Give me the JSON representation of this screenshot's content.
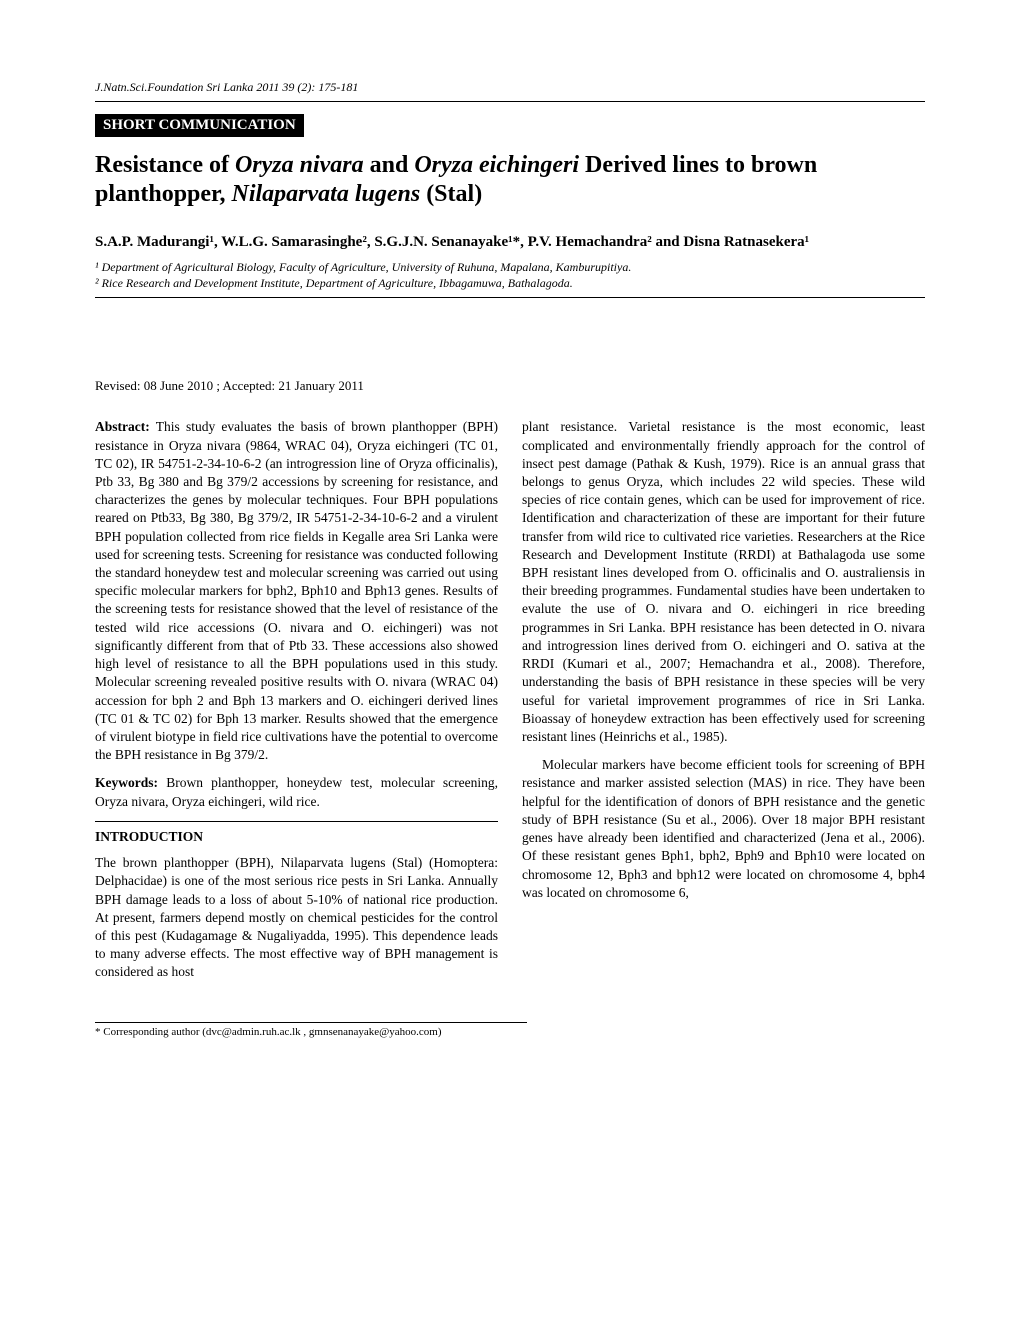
{
  "journal_header": "J.Natn.Sci.Foundation Sri Lanka 2011 39 (2): 175-181",
  "section_label": "SHORT COMMUNICATION",
  "title_pre": "Resistance of ",
  "title_sp1": "Oryza nivara",
  "title_mid1": " and ",
  "title_sp2": "Oryza eichingeri",
  "title_mid2": " Derived lines to brown planthopper, ",
  "title_sp3": "Nilaparvata lugens",
  "title_post": " (Stal)",
  "authors": "S.A.P. Madurangi¹, W.L.G. Samarasinghe², S.G.J.N. Senanayake¹*, P.V. Hemachandra² and Disna Ratnasekera¹",
  "aff1": "¹ Department of Agricultural Biology, Faculty of Agriculture, University of Ruhuna, Mapalana, Kamburupitiya.",
  "aff2": "² Rice Research and Development Institute, Department of Agriculture, Ibbagamuwa, Bathalagoda.",
  "dates": "Revised: 08 June 2010 ; Accepted: 21 January 2011",
  "abstract_label": "Abstract:",
  "abstract_text": " This study evaluates the basis of brown planthopper (BPH) resistance in Oryza nivara (9864, WRAC 04), Oryza eichingeri (TC 01, TC 02), IR 54751-2-34-10-6-2 (an introgression line of Oryza officinalis), Ptb 33, Bg 380 and Bg 379/2 accessions by screening for resistance, and characterizes the genes by molecular techniques. Four BPH populations reared on Ptb33, Bg 380, Bg 379/2, IR 54751-2-34-10-6-2 and a virulent BPH population collected from rice fields in Kegalle area Sri Lanka were used for screening tests. Screening for resistance was conducted following the standard honeydew test and molecular screening was carried out using specific molecular markers for bph2, Bph10 and Bph13 genes. Results of the screening tests for resistance showed that the level of resistance of the tested wild rice accessions (O. nivara and O. eichingeri) was not significantly different from that of Ptb 33. These accessions also showed high level of resistance to all the BPH populations used in this study. Molecular screening revealed positive results with O. nivara (WRAC 04) accession for bph 2 and Bph 13 markers and O. eichingeri derived lines (TC 01 & TC 02) for Bph 13 marker. Results showed that the emergence of virulent biotype in field rice cultivations have the potential to overcome the BPH resistance in Bg 379/2.",
  "keywords_label": "Keywords:",
  "keywords_text": " Brown planthopper, honeydew test, molecular screening, Oryza nivara, Oryza eichingeri, wild rice.",
  "intro_heading": "INTRODUCTION",
  "intro_p1": "The brown planthopper (BPH), Nilaparvata lugens (Stal) (Homoptera: Delphacidae) is one of the most serious rice pests in Sri Lanka. Annually BPH damage leads to a loss of about 5-10% of national rice production. At present, farmers depend mostly on chemical pesticides for the control of this pest (Kudagamage & Nugaliyadda, 1995). This dependence leads to many adverse effects. The most effective way of BPH management is considered as host",
  "col2_p1": "plant resistance. Varietal resistance is the most economic, least complicated and environmentally friendly approach for the control of insect pest damage (Pathak & Kush, 1979). Rice is an annual grass that belongs to genus Oryza, which includes 22 wild species. These wild species of rice contain genes, which can be used for improvement of rice. Identification and characterization of these are important for their future transfer from wild rice to cultivated rice varieties. Researchers at the Rice Research and Development Institute (RRDI) at Bathalagoda use some BPH resistant lines developed from O. officinalis and O. australiensis in their breeding programmes. Fundamental studies have been undertaken to evalute the use of O. nivara and O. eichingeri in rice breeding programmes in Sri Lanka. BPH resistance has been detected in O. nivara and introgression lines derived from O. eichingeri and O. sativa at the RRDI (Kumari et al., 2007; Hemachandra et al., 2008). Therefore, understanding the basis of BPH resistance in these species will be very useful for varietal improvement programmes of rice in Sri Lanka. Bioassay of honeydew extraction has been effectively used for screening resistant lines (Heinrichs et al., 1985).",
  "col2_p2": "Molecular markers have become efficient tools for screening of BPH resistance and marker assisted selection (MAS) in rice. They have been helpful for the identification of donors of BPH resistance and the genetic study of BPH resistance (Su et al., 2006). Over 18 major BPH resistant genes have already been identified and characterized (Jena et al., 2006). Of these resistant genes Bph1, bph2, Bph9 and Bph10 were located on chromosome 12, Bph3 and bph12 were located on chromosome 4, bph4 was located on chromosome 6,",
  "footnote": "* Corresponding author (dvc@admin.ruh.ac.lk , gmnsenanayake@yahoo.com)"
}
